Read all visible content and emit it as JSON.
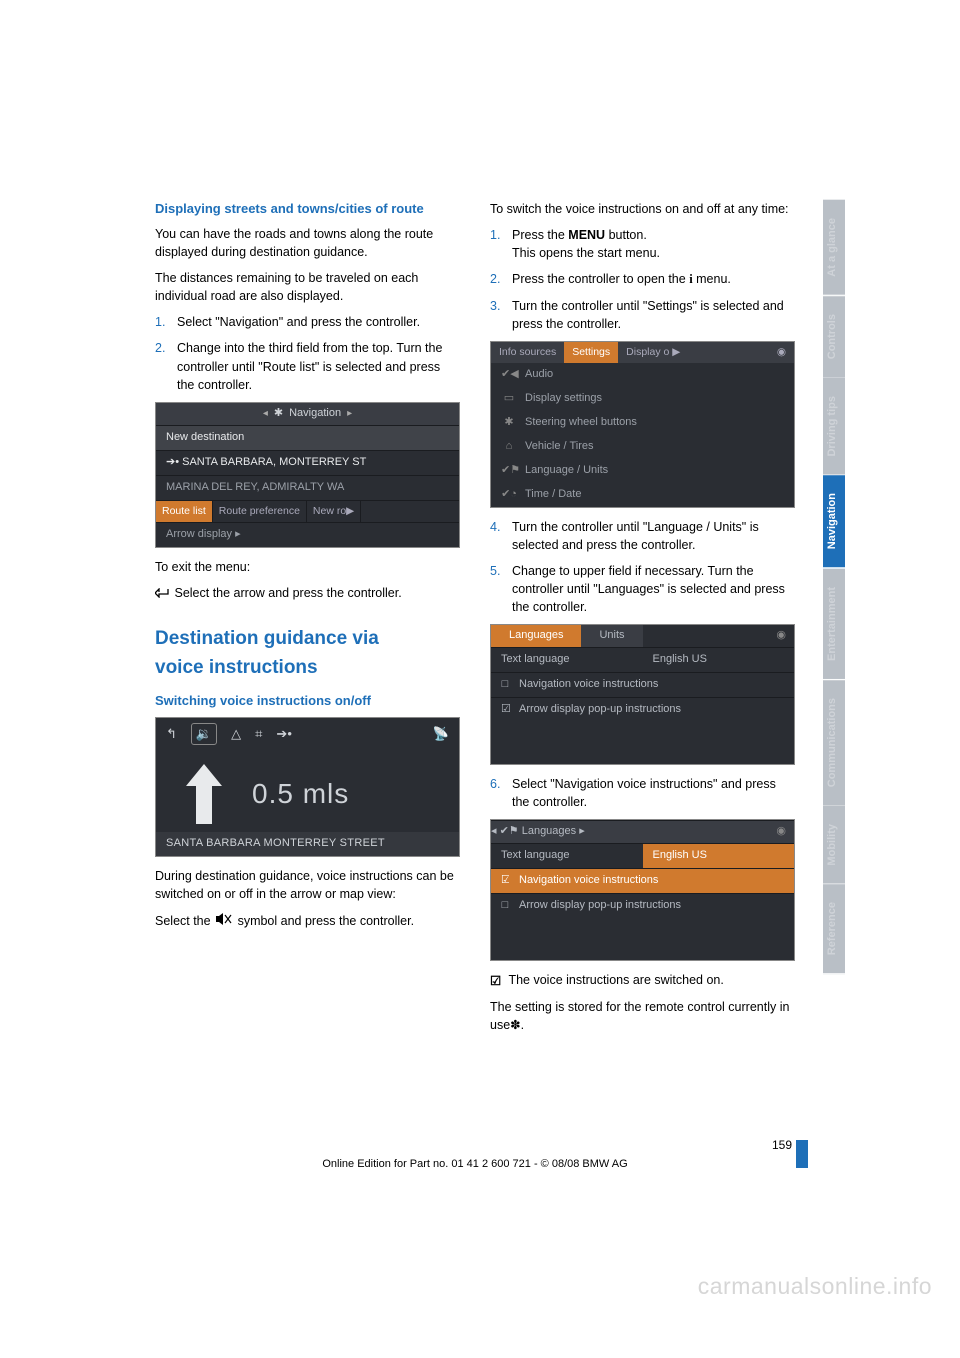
{
  "watermark": "carmanualsonline.info",
  "pagenum": "159",
  "footer": "Online Edition for Part no. 01 41 2 600 721 - © 08/08 BMW AG",
  "sidetabs": [
    "At a glance",
    "Controls",
    "Driving tips",
    "Navigation",
    "Entertainment",
    "Communications",
    "Mobility",
    "Reference"
  ],
  "sidetab_active_index": 3,
  "left": {
    "h1": "Displaying streets and towns/cities of route",
    "p1": "You can have the roads and towns along the route displayed during destination guidance.",
    "p2": "The distances remaining to be traveled on each individual road are also displayed.",
    "steps_a": [
      {
        "n": "1.",
        "t": "Select \"Navigation\" and press the controller."
      },
      {
        "n": "2.",
        "t": "Change into the third field from the top. Turn the controller until \"Route list\" is selected and press the controller."
      }
    ],
    "nav_shot": {
      "top_label": "Navigation",
      "rows": [
        {
          "text": "New destination",
          "cls": "highlight"
        },
        {
          "text": "➔• SANTA BARBARA, MONTERREY ST",
          "cls": "whitetxt"
        },
        {
          "text": "MARINA DEL REY, ADMIRALTY WA",
          "cls": ""
        }
      ],
      "tabs": [
        "Route list",
        "Route preference",
        "New ro▶"
      ],
      "tabs_sel": 0,
      "bottom": "Arrow display  ▸"
    },
    "exit_label": "To exit the menu:",
    "exit_text": "Select the arrow and press the controller.",
    "h2a": "Destination guidance via",
    "h2b": "voice instructions",
    "h3": "Switching voice instructions on/off",
    "arrow_shot": {
      "dist": "0.5 mls",
      "street": "SANTA BARBARA MONTERREY STREET"
    },
    "p3": "During destination guidance, voice instructions can be switched on or off in the arrow or map view:",
    "p4a": "Select the ",
    "p4b": " symbol and press the controller."
  },
  "right": {
    "p1": "To switch the voice instructions on and off at any time:",
    "steps_b": [
      {
        "n": "1.",
        "t_pre": "Press the ",
        "t_bold": "MENU",
        "t_post": " button.",
        "t_line2": "This opens the start menu."
      },
      {
        "n": "2.",
        "t_pre": "Press the controller to open the ",
        "t_icon": "i",
        "t_post": " menu."
      },
      {
        "n": "3.",
        "t": "Turn the controller until \"Settings\" is selected and press the controller."
      }
    ],
    "settings_shot": {
      "toptabs": [
        "Info sources",
        "Settings",
        "Display o ▶"
      ],
      "toptabs_sel": 1,
      "menu": [
        {
          "ico": "✔◀",
          "label": "Audio"
        },
        {
          "ico": "▭",
          "label": "Display settings"
        },
        {
          "ico": "✱",
          "label": "Steering wheel buttons"
        },
        {
          "ico": "⌂",
          "label": "Vehicle / Tires"
        },
        {
          "ico": "✔⚑",
          "label": "Language / Units"
        },
        {
          "ico": "✔◔",
          "label": "Time / Date"
        }
      ]
    },
    "steps_c": [
      {
        "n": "4.",
        "t": "Turn the controller until \"Language / Units\" is selected and press the controller."
      },
      {
        "n": "5.",
        "t": "Change to upper field if necessary. Turn the controller until \"Languages\" is selected and press the controller."
      }
    ],
    "lang_shot1": {
      "tabs": [
        "Languages",
        "Units"
      ],
      "tabs_sel": 0,
      "rows": [
        {
          "left": "Text language",
          "right": "English US"
        },
        {
          "ico": "□",
          "full": "Navigation voice instructions"
        },
        {
          "ico": "☑",
          "full": "Arrow display pop-up instructions"
        }
      ]
    },
    "steps_d": [
      {
        "n": "6.",
        "t": "Select \"Navigation voice instructions\" and press the controller."
      }
    ],
    "lang_shot2": {
      "center_label": "◂ ✔⚑ Languages ▸",
      "rows": [
        {
          "left": "Text language",
          "right": "English US",
          "right_sel": true
        },
        {
          "ico": "☑",
          "full": "Navigation voice instructions",
          "sel": true
        },
        {
          "ico": "□",
          "full": "Arrow display pop-up instructions"
        }
      ]
    },
    "p_check": "The voice instructions are switched on.",
    "p_last": "The setting is stored for the remote control currently in use✽."
  }
}
